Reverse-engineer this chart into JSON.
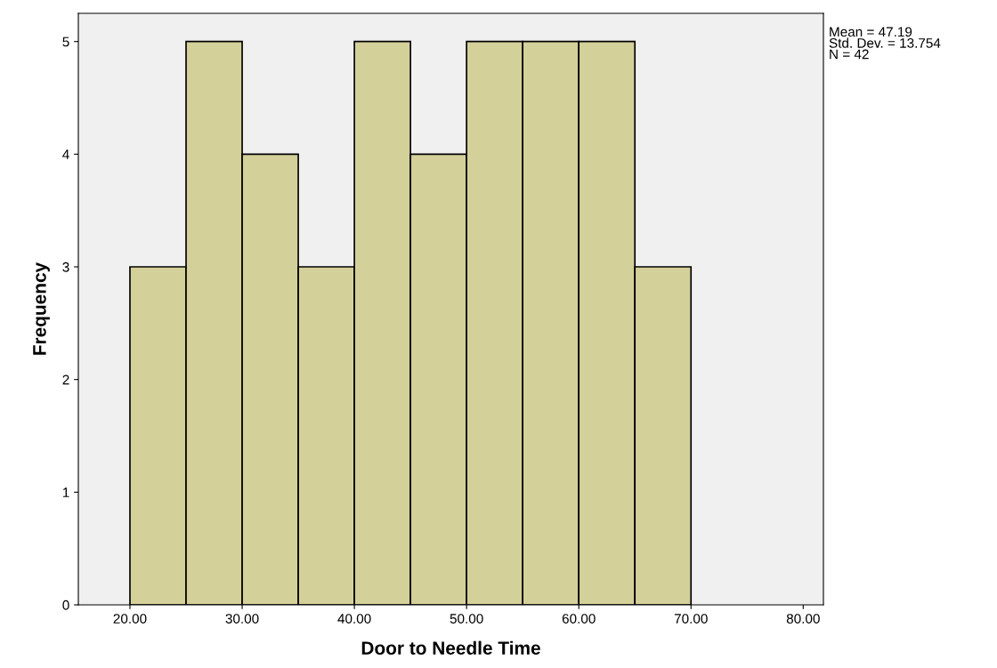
{
  "chart_data": {
    "type": "histogram",
    "xlabel": "Door to Needle Time",
    "ylabel": "Frequency",
    "bins": [
      20,
      25,
      30,
      35,
      40,
      45,
      50,
      55,
      60,
      65,
      70
    ],
    "values": [
      3,
      5,
      4,
      3,
      5,
      4,
      5,
      5,
      5,
      3
    ],
    "color": "#d4d09a",
    "xlim": [
      15.4,
      81.8
    ],
    "ylim": [
      0,
      5.25
    ],
    "xticks": [
      {
        "value": 20,
        "label": "20.00"
      },
      {
        "value": 30,
        "label": "30.00"
      },
      {
        "value": 40,
        "label": "40.00"
      },
      {
        "value": 50,
        "label": "50.00"
      },
      {
        "value": 60,
        "label": "60.00"
      },
      {
        "value": 70,
        "label": "70.00"
      },
      {
        "value": 80,
        "label": "80.00"
      }
    ],
    "yticks": [
      0,
      1,
      2,
      3,
      4,
      5
    ],
    "grid": false,
    "legend": false,
    "annotations": [
      "Mean = 47.19\nStd. Dev. = 13.754\nN = 42"
    ]
  }
}
